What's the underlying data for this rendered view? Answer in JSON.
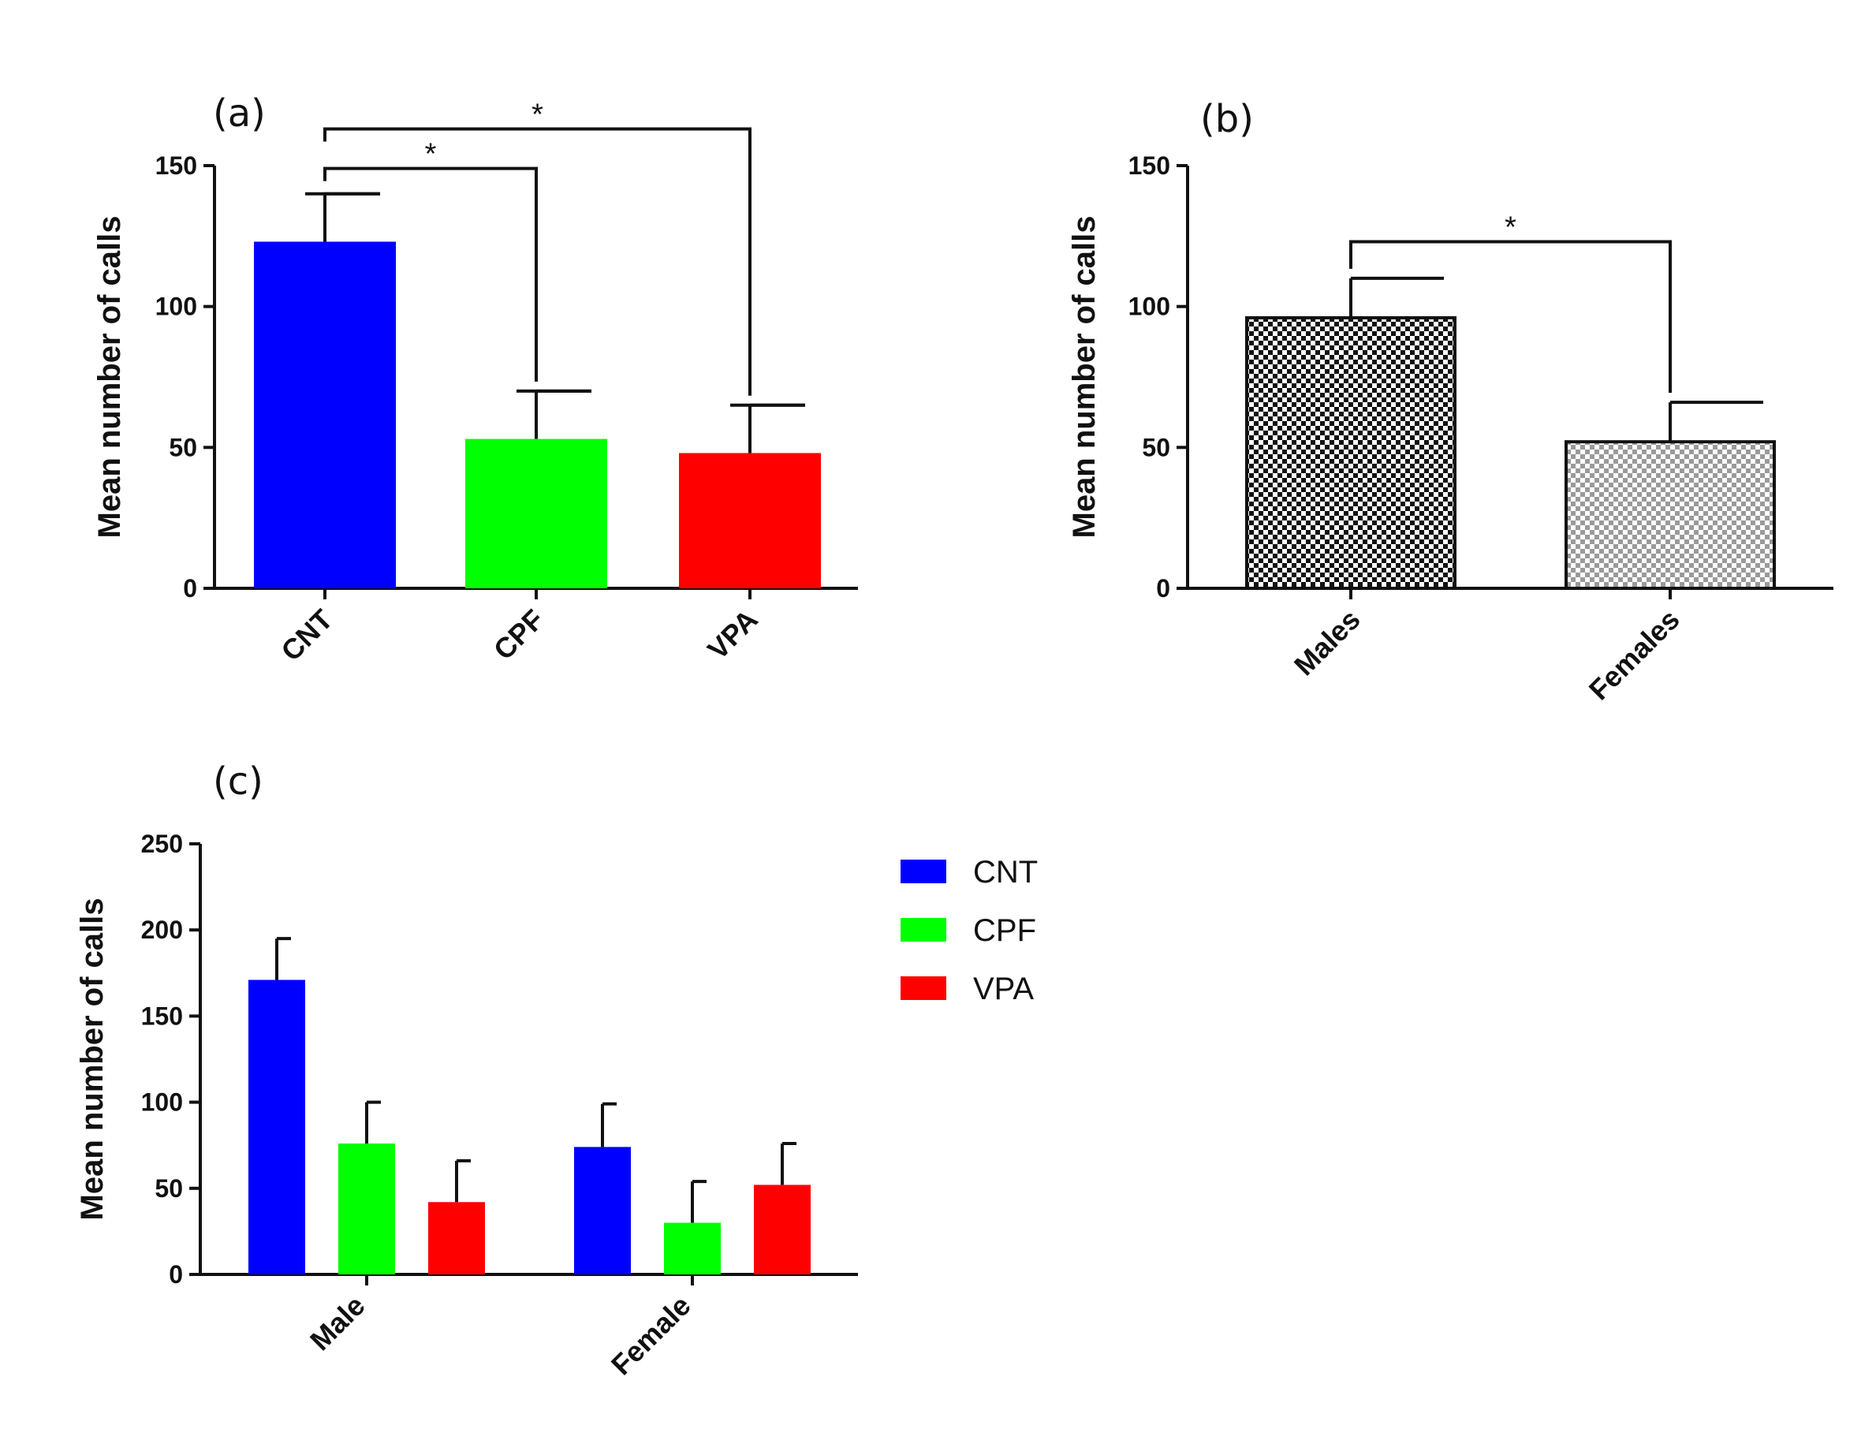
{
  "chart_data": [
    {
      "id": "a",
      "type": "bar",
      "panel_label": "(a)",
      "title": "",
      "xlabel": "",
      "ylabel": "Mean number of calls",
      "ylim": [
        0,
        150
      ],
      "yticks": [
        0,
        50,
        100,
        150
      ],
      "categories": [
        "CNT",
        "CPF",
        "VPA"
      ],
      "values": [
        123,
        53,
        48
      ],
      "errors": [
        17,
        17,
        17
      ],
      "colors": [
        "#0000ff",
        "#00ff00",
        "#ff0000"
      ],
      "significance": [
        {
          "from": 0,
          "to": 1,
          "label": "*",
          "level": 149
        },
        {
          "from": 0,
          "to": 2,
          "label": "*",
          "level": 163
        }
      ]
    },
    {
      "id": "b",
      "type": "bar",
      "panel_label": "(b)",
      "title": "",
      "xlabel": "",
      "ylabel": "Mean number of calls",
      "ylim": [
        0,
        150
      ],
      "yticks": [
        0,
        50,
        100,
        150
      ],
      "categories": [
        "Males",
        "Females"
      ],
      "values": [
        96,
        52
      ],
      "errors": [
        14,
        14
      ],
      "patterns": [
        "checker-dark",
        "checker-light"
      ],
      "significance": [
        {
          "from": 0,
          "to": 1,
          "label": "*",
          "level": 123
        }
      ]
    },
    {
      "id": "c",
      "type": "bar",
      "panel_label": "(c)",
      "title": "",
      "xlabel": "",
      "ylabel": "Mean number of calls",
      "ylim": [
        0,
        250
      ],
      "yticks": [
        0,
        50,
        100,
        150,
        200,
        250
      ],
      "categories": [
        "Male",
        "Female"
      ],
      "series": [
        {
          "name": "CNT",
          "color": "#0000ff",
          "values": [
            171,
            74
          ],
          "errors": [
            24,
            25
          ]
        },
        {
          "name": "CPF",
          "color": "#00ff00",
          "values": [
            76,
            30
          ],
          "errors": [
            24,
            24
          ]
        },
        {
          "name": "VPA",
          "color": "#ff0000",
          "values": [
            42,
            52
          ],
          "errors": [
            24,
            24
          ]
        }
      ],
      "legend": [
        "CNT",
        "CPF",
        "VPA"
      ],
      "legend_position": "right"
    }
  ]
}
